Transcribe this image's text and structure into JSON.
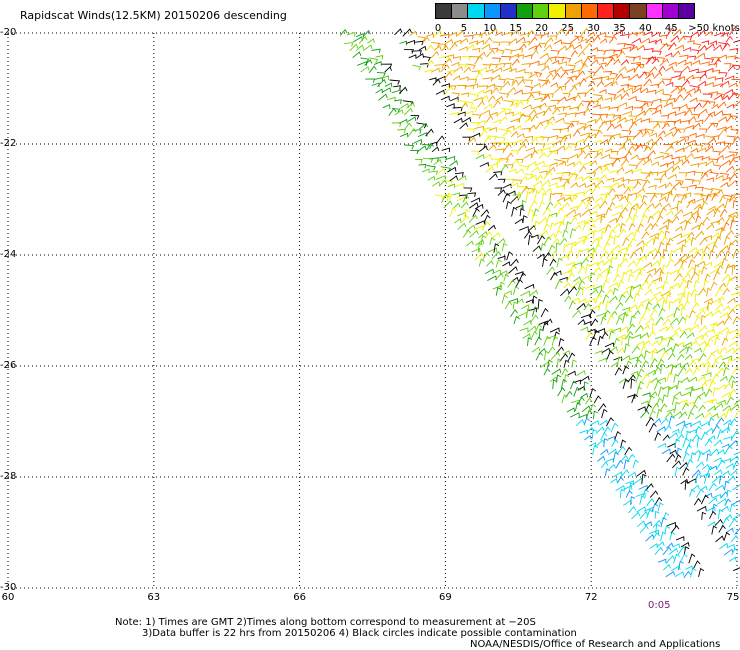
{
  "title": "Rapidscat Winds(12.5KM) 20150206 descending",
  "legend": {
    "colors": [
      "#3a3a3a",
      "#8c8c8c",
      "#00d8f0",
      "#0a96ff",
      "#2030c8",
      "#10a010",
      "#60d010",
      "#f0f000",
      "#f0a000",
      "#ff6a00",
      "#ff2020",
      "#b40000",
      "#7a4020",
      "#ff30ff",
      "#a000d0",
      "#5a00a0"
    ],
    "tick_labels": [
      "0",
      "5",
      "10",
      "15",
      "20",
      "25",
      "30",
      "35",
      "40",
      "45",
      ">50 knots"
    ],
    "unit": "knots"
  },
  "map": {
    "lat_min": -30,
    "lat_max": -20,
    "lon_min": 60,
    "lon_max": 75,
    "lat_labels": [
      "-20",
      "-22",
      "-24",
      "-26",
      "-28",
      "-30"
    ],
    "lat_values": [
      -20,
      -22,
      -24,
      -26,
      -28,
      -30
    ],
    "lon_labels": [
      "60",
      "63",
      "66",
      "69",
      "72",
      "75"
    ],
    "lon_values": [
      60,
      63,
      66,
      69,
      72,
      75
    ],
    "grid": true
  },
  "time_label": "0:05",
  "notes": [
    "Note: 1) Times are GMT 2)Times along bottom correspond to measurement at −20S",
    "3)Data buffer is 22 hrs from 20150206 4) Black circles indicate possible contamination",
    "NOAA/NESDIS/Office of Research and Applications"
  ]
}
